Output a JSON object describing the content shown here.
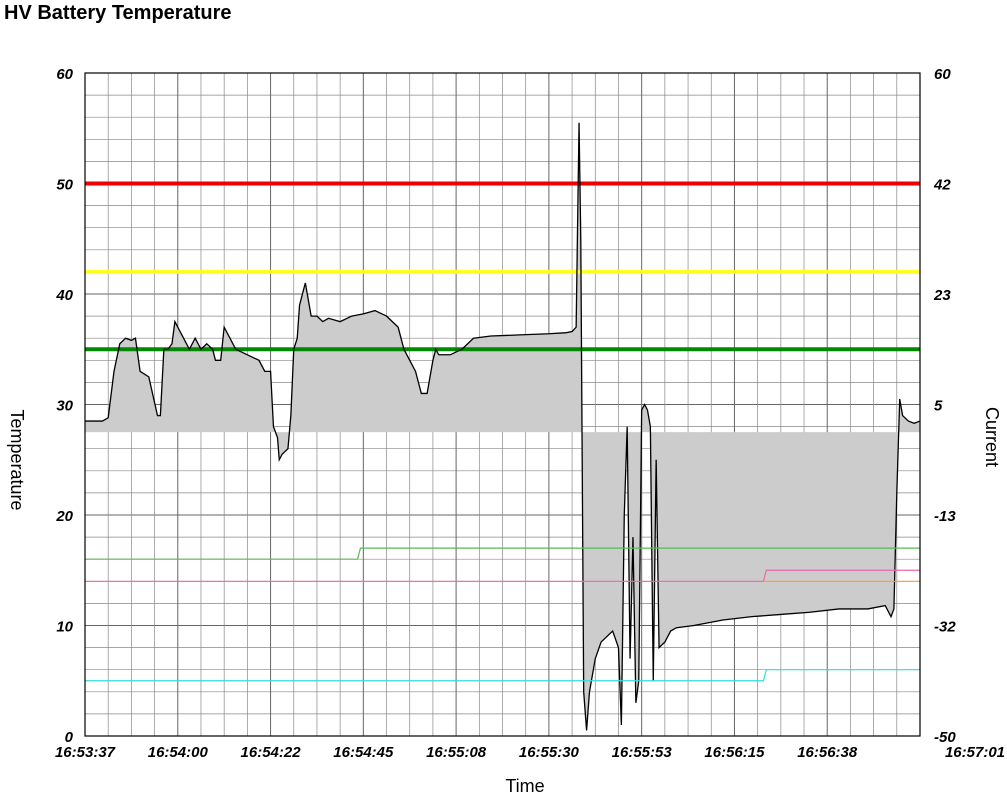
{
  "chart_data": {
    "type": "line",
    "title": "HV Battery Temperature",
    "xlabel": "Time",
    "ylabel": "Temperature",
    "y2label": "Current",
    "x_ticks": [
      "16:53:37",
      "16:54:00",
      "16:54:22",
      "16:54:45",
      "16:55:08",
      "16:55:30",
      "16:55:53",
      "16:56:15",
      "16:56:38",
      "16:57:01"
    ],
    "ylim": [
      0,
      60
    ],
    "y_ticks": [
      "0",
      "10",
      "20",
      "30",
      "40",
      "50",
      "60"
    ],
    "y2lim": [
      -50,
      60
    ],
    "y2_ticks": [
      "-50",
      "-32",
      "-13",
      "5",
      "23",
      "42",
      "60"
    ],
    "grid": true,
    "thresholds": [
      {
        "value": 50,
        "color": "#ee0000"
      },
      {
        "value": 42,
        "color": "#ffff22"
      },
      {
        "value": 35,
        "color": "#008800"
      }
    ],
    "series": [
      {
        "role": "temperature",
        "color": "#000000",
        "fill": "#cccccc",
        "baseline": 27.5,
        "points": [
          [
            0,
            28.5
          ],
          [
            3,
            28.5
          ],
          [
            4,
            28.8
          ],
          [
            5,
            33
          ],
          [
            6,
            35.5
          ],
          [
            7,
            36
          ],
          [
            8,
            35.8
          ],
          [
            8.7,
            36
          ],
          [
            9.5,
            33
          ],
          [
            11,
            32.5
          ],
          [
            12.5,
            29
          ],
          [
            13,
            29
          ],
          [
            13.6,
            35
          ],
          [
            14.3,
            35
          ],
          [
            15,
            35.5
          ],
          [
            15.5,
            37.5
          ],
          [
            17,
            36
          ],
          [
            18,
            35
          ],
          [
            19,
            36
          ],
          [
            20,
            35
          ],
          [
            21,
            35.5
          ],
          [
            22,
            35
          ],
          [
            22.5,
            34
          ],
          [
            23.4,
            34
          ],
          [
            24,
            37
          ],
          [
            25,
            36
          ],
          [
            26,
            35
          ],
          [
            28,
            34.5
          ],
          [
            30,
            34
          ],
          [
            31,
            33
          ],
          [
            32,
            33
          ],
          [
            32.5,
            28
          ],
          [
            33.2,
            27
          ],
          [
            33.5,
            25
          ],
          [
            34,
            25.5
          ],
          [
            35,
            26
          ],
          [
            35.5,
            29
          ],
          [
            36,
            35
          ],
          [
            36.6,
            36
          ],
          [
            37,
            39
          ],
          [
            38,
            41
          ],
          [
            39,
            38
          ],
          [
            40,
            38
          ],
          [
            41,
            37.5
          ],
          [
            42,
            37.8
          ],
          [
            44,
            37.5
          ],
          [
            46,
            38
          ],
          [
            48,
            38.2
          ],
          [
            50,
            38.5
          ],
          [
            52,
            38
          ],
          [
            53,
            37.5
          ],
          [
            54,
            37
          ],
          [
            55,
            35
          ],
          [
            56,
            34
          ],
          [
            57,
            33
          ],
          [
            58,
            31
          ],
          [
            59,
            31
          ],
          [
            60,
            34
          ],
          [
            60.5,
            35
          ],
          [
            61,
            34.5
          ],
          [
            63,
            34.5
          ],
          [
            65,
            35
          ],
          [
            66,
            35.5
          ],
          [
            67,
            36
          ],
          [
            70,
            36.2
          ],
          [
            75,
            36.3
          ],
          [
            80,
            36.4
          ],
          [
            83,
            36.5
          ],
          [
            84,
            36.6
          ],
          [
            84.7,
            37
          ],
          [
            85.2,
            55.5
          ],
          [
            85.5,
            45
          ],
          [
            86,
            4
          ],
          [
            86.5,
            0.5
          ],
          [
            87,
            4
          ],
          [
            88,
            7
          ],
          [
            89,
            8.5
          ],
          [
            90,
            9
          ],
          [
            91,
            9.5
          ],
          [
            92,
            8
          ],
          [
            92.5,
            1
          ],
          [
            93,
            20
          ],
          [
            93.5,
            28
          ],
          [
            94,
            7
          ],
          [
            94.5,
            18
          ],
          [
            95,
            3
          ],
          [
            95.5,
            5
          ],
          [
            96,
            29.5
          ],
          [
            96.5,
            30
          ],
          [
            97,
            29.5
          ],
          [
            97.5,
            28
          ],
          [
            98,
            5
          ],
          [
            98.5,
            25
          ],
          [
            99,
            8
          ],
          [
            100,
            8.5
          ],
          [
            101,
            9.5
          ],
          [
            102,
            9.8
          ],
          [
            105,
            10
          ],
          [
            110,
            10.5
          ],
          [
            115,
            10.8
          ],
          [
            120,
            11
          ],
          [
            125,
            11.2
          ],
          [
            130,
            11.5
          ],
          [
            135,
            11.5
          ],
          [
            138,
            11.8
          ],
          [
            139,
            10.8
          ],
          [
            139.5,
            11.5
          ],
          [
            140,
            22
          ],
          [
            140.5,
            30.5
          ],
          [
            141,
            29
          ],
          [
            142,
            28.5
          ],
          [
            143,
            28.3
          ],
          [
            144,
            28.5
          ]
        ]
      },
      {
        "role": "series-green",
        "color": "#55bb55",
        "points": [
          [
            0,
            16
          ],
          [
            47,
            16
          ],
          [
            47.5,
            17
          ],
          [
            144,
            17
          ]
        ]
      },
      {
        "role": "series-pink",
        "color": "#ee66aa",
        "points": [
          [
            0,
            14
          ],
          [
            117,
            14
          ],
          [
            117.5,
            15
          ],
          [
            144,
            15
          ]
        ]
      },
      {
        "role": "series-orange",
        "color": "#ff9933",
        "points": [
          [
            117,
            14
          ],
          [
            144,
            14
          ]
        ]
      },
      {
        "role": "series-cyan",
        "color": "#33dddd",
        "points": [
          [
            0,
            5
          ],
          [
            117,
            5
          ],
          [
            117.5,
            6
          ],
          [
            144,
            6
          ]
        ]
      }
    ]
  }
}
